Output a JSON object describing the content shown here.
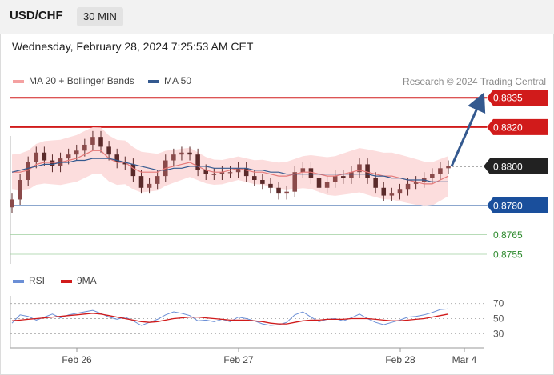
{
  "header": {
    "symbol": "USD/CHF",
    "timeframe": "30 MIN"
  },
  "datetime": "Wednesday, February 28, 2024 7:25:53 AM CET",
  "credit": "Research © 2024 Trading Central",
  "colors": {
    "bollinger": "#f08080",
    "ma50": "#34598f",
    "rsi": "#6b8fd6",
    "rsi_ma": "#d11b1b",
    "support": "#1a4f9c",
    "resistance": "#d11b1b",
    "minor_support": "#2e8b2e",
    "current": "#222222"
  },
  "chart_data": [
    {
      "type": "line",
      "panel": "price",
      "legend": [
        "MA 20 + Bollinger Bands",
        "MA 50"
      ],
      "x_ticks": [
        "Feb 26",
        "Feb 27",
        "Feb 28",
        "Mar 4"
      ],
      "levels": [
        {
          "value": "0.8835",
          "kind": "resistance"
        },
        {
          "value": "0.8820",
          "kind": "resistance"
        },
        {
          "value": "0.8800",
          "kind": "current"
        },
        {
          "value": "0.8780",
          "kind": "support"
        },
        {
          "value": "0.8765",
          "kind": "minor-support"
        },
        {
          "value": "0.8755",
          "kind": "minor-support"
        }
      ],
      "ylim": [
        0.8746,
        0.884
      ],
      "series": [
        {
          "name": "MA 20 + Bollinger Bands",
          "values": [
            0.8797,
            0.8797,
            0.8798,
            0.8801,
            0.8802,
            0.8802,
            0.8802,
            0.8803,
            0.8804,
            0.8806,
            0.8808,
            0.8808,
            0.8804,
            0.8802,
            0.8802,
            0.8799,
            0.8797,
            0.8797,
            0.8797,
            0.8799,
            0.88,
            0.8801,
            0.8802,
            0.88,
            0.8798,
            0.8797,
            0.8797,
            0.8798,
            0.8799,
            0.8798,
            0.8797,
            0.8797,
            0.8796,
            0.8795,
            0.8795,
            0.8796,
            0.8797,
            0.8797,
            0.8796,
            0.8795,
            0.8795,
            0.8796,
            0.8797,
            0.8798,
            0.8797,
            0.8796,
            0.8795,
            0.8795,
            0.8794,
            0.8793,
            0.8792,
            0.8791,
            0.8791,
            0.8793,
            0.8795
          ]
        },
        {
          "name": "MA 50",
          "values": [
            0.8797,
            0.8798,
            0.8799,
            0.88,
            0.8801,
            0.8801,
            0.8802,
            0.8802,
            0.8803,
            0.8803,
            0.8804,
            0.8804,
            0.8804,
            0.8803,
            0.8802,
            0.8801,
            0.88,
            0.8799,
            0.8798,
            0.8798,
            0.8799,
            0.8799,
            0.88,
            0.88,
            0.88,
            0.8799,
            0.8799,
            0.8799,
            0.8799,
            0.8799,
            0.8798,
            0.8798,
            0.8797,
            0.8797,
            0.8796,
            0.8796,
            0.8796,
            0.8796,
            0.8796,
            0.8796,
            0.8796,
            0.8796,
            0.8796,
            0.8796,
            0.8796,
            0.8795,
            0.8795,
            0.8794,
            0.8794,
            0.8793,
            0.8793,
            0.8793,
            0.8792,
            0.8792,
            0.8792
          ]
        },
        {
          "name": "Close",
          "values": [
            0.8783,
            0.8793,
            0.8802,
            0.8807,
            0.8803,
            0.88,
            0.8804,
            0.8806,
            0.8808,
            0.8811,
            0.8815,
            0.881,
            0.8806,
            0.8802,
            0.8801,
            0.8795,
            0.8789,
            0.8791,
            0.8795,
            0.8803,
            0.8806,
            0.8807,
            0.8806,
            0.8798,
            0.8796,
            0.8796,
            0.8797,
            0.8797,
            0.8799,
            0.8795,
            0.8793,
            0.8791,
            0.8789,
            0.8786,
            0.8787,
            0.8797,
            0.8799,
            0.8794,
            0.8789,
            0.8792,
            0.8795,
            0.8794,
            0.8797,
            0.8801,
            0.8794,
            0.8789,
            0.8785,
            0.8786,
            0.8788,
            0.8791,
            0.8792,
            0.8794,
            0.8796,
            0.8799,
            0.88
          ]
        }
      ],
      "forecast_target": "0.8835"
    },
    {
      "type": "line",
      "panel": "rsi",
      "legend": [
        "RSI",
        "9MA"
      ],
      "y_ticks": [
        "70",
        "50",
        "30"
      ],
      "ylim": [
        22,
        78
      ],
      "series": [
        {
          "name": "RSI",
          "values": [
            44,
            55,
            53,
            48,
            52,
            56,
            51,
            55,
            57,
            59,
            61,
            57,
            52,
            49,
            52,
            47,
            41,
            45,
            49,
            55,
            59,
            57,
            54,
            47,
            48,
            46,
            49,
            46,
            52,
            50,
            47,
            43,
            41,
            42,
            45,
            55,
            59,
            52,
            46,
            49,
            50,
            47,
            51,
            56,
            50,
            45,
            42,
            45,
            48,
            52,
            53,
            55,
            58,
            62,
            63
          ]
        },
        {
          "name": "9MA",
          "values": [
            47,
            48,
            49,
            50,
            51,
            52,
            53,
            54,
            55,
            56,
            57,
            56,
            54,
            52,
            50,
            48,
            46,
            45,
            46,
            48,
            50,
            51,
            52,
            52,
            51,
            50,
            49,
            48,
            48,
            48,
            47,
            46,
            44,
            43,
            43,
            45,
            47,
            48,
            48,
            49,
            49,
            49,
            50,
            50,
            50,
            49,
            48,
            47,
            47,
            48,
            49,
            50,
            52,
            54,
            56
          ]
        }
      ]
    }
  ]
}
